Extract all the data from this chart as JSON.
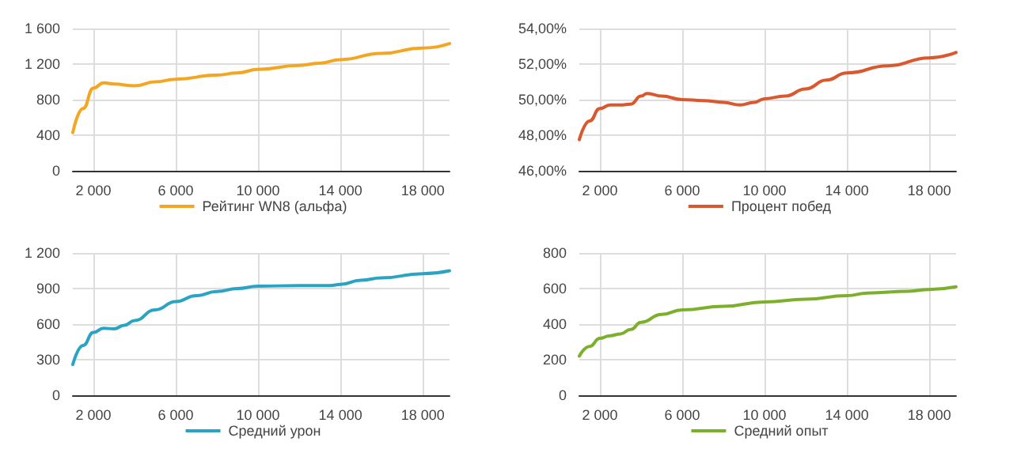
{
  "chart_data": [
    {
      "type": "line",
      "x": [
        1000,
        1500,
        2000,
        2500,
        3000,
        4000,
        5000,
        6000,
        8000,
        9000,
        10000,
        12000,
        13000,
        14000,
        16000,
        18000,
        19300
      ],
      "series": [
        {
          "name": "Рейтинг WN8 (альфа)",
          "color": "#f4a623",
          "values": [
            430,
            700,
            930,
            990,
            975,
            955,
            1000,
            1030,
            1075,
            1100,
            1140,
            1185,
            1210,
            1250,
            1320,
            1380,
            1430
          ]
        }
      ],
      "xlim": [
        1000,
        19300
      ],
      "xticks": [
        {
          "value": 2000,
          "label": "2 000"
        },
        {
          "value": 6000,
          "label": "6 000"
        },
        {
          "value": 10000,
          "label": "10 000"
        },
        {
          "value": 14000,
          "label": "14 000"
        },
        {
          "value": 18000,
          "label": "18 000"
        }
      ],
      "ylim": [
        0,
        1600
      ],
      "yticks": [
        0,
        400,
        800,
        {
          "value": 1200,
          "label": "1 200"
        },
        {
          "value": 1600,
          "label": "1 600"
        }
      ],
      "grid": true,
      "legend": "bottom"
    },
    {
      "type": "line",
      "x": [
        1000,
        1500,
        2000,
        2500,
        3000,
        3500,
        4000,
        4300,
        5000,
        6000,
        7000,
        8000,
        8800,
        9500,
        10000,
        11000,
        12000,
        13000,
        14000,
        16000,
        18000,
        19300
      ],
      "series": [
        {
          "name": "Процент побед",
          "color": "#d9582e",
          "values": [
            47.75,
            48.8,
            49.5,
            49.7,
            49.7,
            49.75,
            50.2,
            50.35,
            50.2,
            50.0,
            49.95,
            49.85,
            49.7,
            49.85,
            50.05,
            50.2,
            50.6,
            51.1,
            51.5,
            51.9,
            52.35,
            52.65
          ]
        }
      ],
      "xlim": [
        1000,
        19300
      ],
      "xticks": [
        {
          "value": 2000,
          "label": "2 000"
        },
        {
          "value": 6000,
          "label": "6 000"
        },
        {
          "value": 10000,
          "label": "10 000"
        },
        {
          "value": 14000,
          "label": "14 000"
        },
        {
          "value": 18000,
          "label": "18 000"
        }
      ],
      "ylim": [
        46,
        54
      ],
      "yticks": [
        {
          "value": 46,
          "label": "46,00%"
        },
        {
          "value": 48,
          "label": "48,00%"
        },
        {
          "value": 50,
          "label": "50,00%"
        },
        {
          "value": 52,
          "label": "52,00%"
        },
        {
          "value": 54,
          "label": "54,00%"
        }
      ],
      "grid": true,
      "legend": "bottom"
    },
    {
      "type": "line",
      "x": [
        1000,
        1500,
        2000,
        2500,
        3000,
        3500,
        4000,
        5000,
        6000,
        7000,
        8000,
        9000,
        10000,
        12000,
        13500,
        14000,
        15000,
        16000,
        18000,
        19300
      ],
      "series": [
        {
          "name": "Средний урон",
          "color": "#2ba3c2",
          "values": [
            260,
            420,
            530,
            565,
            560,
            590,
            630,
            720,
            790,
            840,
            875,
            900,
            920,
            925,
            925,
            935,
            970,
            990,
            1025,
            1050
          ]
        }
      ],
      "xlim": [
        1000,
        19300
      ],
      "xticks": [
        {
          "value": 2000,
          "label": "2 000"
        },
        {
          "value": 6000,
          "label": "6 000"
        },
        {
          "value": 10000,
          "label": "10 000"
        },
        {
          "value": 14000,
          "label": "14 000"
        },
        {
          "value": 18000,
          "label": "18 000"
        }
      ],
      "ylim": [
        0,
        1200
      ],
      "yticks": [
        0,
        300,
        600,
        900,
        {
          "value": 1200,
          "label": "1 200"
        }
      ],
      "grid": true,
      "legend": "bottom"
    },
    {
      "type": "line",
      "x": [
        1000,
        1500,
        2000,
        2500,
        3000,
        3500,
        4000,
        5000,
        6000,
        8000,
        10000,
        12000,
        14000,
        15000,
        17000,
        18000,
        19300
      ],
      "series": [
        {
          "name": "Средний опыт",
          "color": "#7cb02c",
          "values": [
            220,
            275,
            320,
            335,
            345,
            370,
            410,
            455,
            480,
            500,
            525,
            540,
            560,
            575,
            585,
            595,
            610
          ]
        }
      ],
      "xlim": [
        1000,
        19300
      ],
      "xticks": [
        {
          "value": 2000,
          "label": "2 000"
        },
        {
          "value": 6000,
          "label": "6 000"
        },
        {
          "value": 10000,
          "label": "10 000"
        },
        {
          "value": 14000,
          "label": "14 000"
        },
        {
          "value": 18000,
          "label": "18 000"
        }
      ],
      "ylim": [
        0,
        800
      ],
      "yticks": [
        0,
        200,
        400,
        600,
        800
      ],
      "grid": true,
      "legend": "bottom"
    }
  ]
}
